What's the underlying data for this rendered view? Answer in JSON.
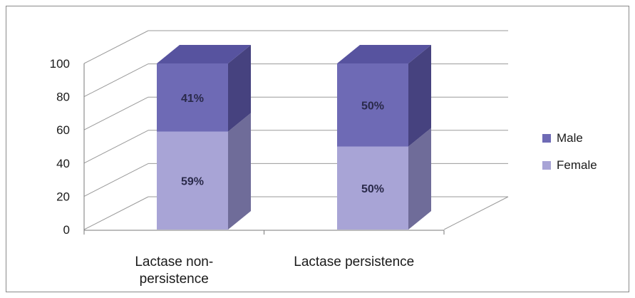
{
  "chart_data": {
    "type": "bar",
    "stacked": true,
    "three_d": true,
    "categories": [
      "Lactase non-\npersistence",
      "Lactase persistence"
    ],
    "series": [
      {
        "name": "Female",
        "values": [
          59,
          50
        ],
        "labels": [
          "59%",
          "50%"
        ],
        "color": "#a8a4d6"
      },
      {
        "name": "Male",
        "values": [
          41,
          50
        ],
        "labels": [
          "41%",
          "50%"
        ],
        "color": "#6e6ab5"
      }
    ],
    "y_ticks": [
      0,
      20,
      40,
      60,
      80,
      100
    ],
    "ylim": [
      0,
      100
    ],
    "grid": true,
    "legend_position": "right",
    "colors": {
      "female_side": "#6f6c99",
      "male_side": "#46427f",
      "male_top": "#57539f",
      "gridline": "#9a9a9a"
    }
  }
}
